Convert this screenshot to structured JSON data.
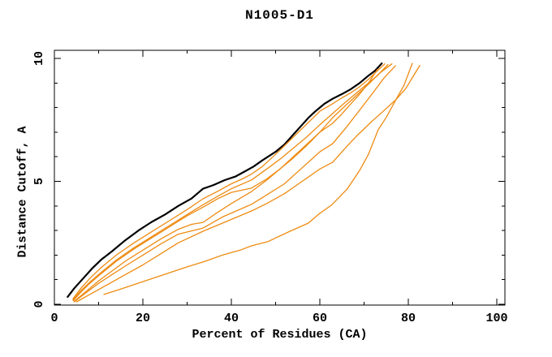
{
  "figure": {
    "background_color": "#ffffff",
    "axis_color": "#000000"
  },
  "chart_data": {
    "type": "line",
    "title": "N1005-D1",
    "xlabel": "Percent of Residues (CA)",
    "ylabel": "Distance Cutoff, A",
    "xlim": [
      0,
      102
    ],
    "ylim": [
      0,
      10.35
    ],
    "grid": false,
    "legend": "none",
    "frame": "full box, mirrored inward ticks",
    "x_axis": {
      "major_ticks": [
        0,
        20,
        40,
        60,
        80,
        100
      ],
      "minor_ticks": [
        10,
        30,
        50,
        70,
        90
      ],
      "tick_labels": [
        "0",
        "20",
        "40",
        "60",
        "80",
        "100"
      ]
    },
    "y_axis": {
      "major_ticks": [
        0,
        5,
        10
      ],
      "minor_ticks": [
        1,
        2,
        3,
        4,
        6,
        7,
        8,
        9
      ],
      "tick_labels": [
        "0",
        "5",
        "10"
      ],
      "tick_label_rotation_deg": -90
    },
    "series": [
      {
        "name": "black-curve",
        "color": "#000000",
        "stroke_width": 2.2,
        "points": [
          [
            3,
            0.3
          ],
          [
            4.5,
            0.65
          ],
          [
            6.5,
            1.05
          ],
          [
            8.5,
            1.45
          ],
          [
            10.6,
            1.82
          ],
          [
            13,
            2.15
          ],
          [
            16,
            2.6
          ],
          [
            19,
            3.0
          ],
          [
            22,
            3.35
          ],
          [
            25,
            3.65
          ],
          [
            28,
            4.0
          ],
          [
            31,
            4.3
          ],
          [
            33.6,
            4.7
          ],
          [
            36,
            4.85
          ],
          [
            38.5,
            5.05
          ],
          [
            41,
            5.2
          ],
          [
            43,
            5.4
          ],
          [
            45,
            5.6
          ],
          [
            47,
            5.85
          ],
          [
            50,
            6.2
          ],
          [
            52,
            6.5
          ],
          [
            54,
            6.9
          ],
          [
            56,
            7.3
          ],
          [
            57.5,
            7.6
          ],
          [
            59,
            7.85
          ],
          [
            61,
            8.15
          ],
          [
            62.9,
            8.36
          ],
          [
            65,
            8.55
          ],
          [
            67,
            8.75
          ],
          [
            69,
            9.0
          ],
          [
            71,
            9.3
          ],
          [
            72.5,
            9.5
          ],
          [
            74,
            9.8
          ]
        ]
      },
      {
        "name": "orange-curve-1",
        "color": "#ee8b12",
        "stroke_width": 1.3,
        "points": [
          [
            4.2,
            0.22
          ],
          [
            6,
            0.65
          ],
          [
            8,
            1.05
          ],
          [
            10.6,
            1.5
          ],
          [
            14,
            2.0
          ],
          [
            18,
            2.5
          ],
          [
            22,
            2.95
          ],
          [
            26,
            3.4
          ],
          [
            30,
            3.85
          ],
          [
            33.6,
            4.29
          ],
          [
            37,
            4.6
          ],
          [
            40,
            4.9
          ],
          [
            42.5,
            5.1
          ],
          [
            44.6,
            5.3
          ],
          [
            47,
            5.6
          ],
          [
            50,
            6.1
          ],
          [
            52,
            6.45
          ],
          [
            54,
            6.8
          ],
          [
            56,
            7.15
          ],
          [
            58,
            7.5
          ],
          [
            60,
            7.85
          ],
          [
            62.9,
            8.16
          ],
          [
            65,
            8.4
          ],
          [
            67,
            8.6
          ],
          [
            69,
            8.85
          ],
          [
            71,
            9.15
          ],
          [
            73,
            9.5
          ],
          [
            74.7,
            9.78
          ]
        ]
      },
      {
        "name": "orange-curve-2",
        "color": "#ee8b12",
        "stroke_width": 1.3,
        "points": [
          [
            4.2,
            0.18
          ],
          [
            6,
            0.55
          ],
          [
            8,
            0.9
          ],
          [
            10.6,
            1.3
          ],
          [
            14,
            1.8
          ],
          [
            18,
            2.3
          ],
          [
            22,
            2.75
          ],
          [
            26,
            3.2
          ],
          [
            30,
            3.65
          ],
          [
            33.6,
            4.05
          ],
          [
            37,
            4.4
          ],
          [
            40,
            4.7
          ],
          [
            44.6,
            5.06
          ],
          [
            48,
            5.5
          ],
          [
            51,
            5.9
          ],
          [
            54,
            6.35
          ],
          [
            57,
            6.8
          ],
          [
            60,
            7.3
          ],
          [
            62.9,
            7.76
          ],
          [
            65,
            8.1
          ],
          [
            68,
            8.55
          ],
          [
            71,
            9.0
          ],
          [
            73,
            9.3
          ],
          [
            75.4,
            9.75
          ]
        ]
      },
      {
        "name": "orange-curve-3",
        "color": "#ee8b12",
        "stroke_width": 1.3,
        "points": [
          [
            4.3,
            0.15
          ],
          [
            6,
            0.5
          ],
          [
            8,
            0.85
          ],
          [
            10.6,
            1.25
          ],
          [
            14,
            1.75
          ],
          [
            18,
            2.25
          ],
          [
            22,
            2.7
          ],
          [
            26,
            3.15
          ],
          [
            30,
            3.6
          ],
          [
            33.6,
            3.95
          ],
          [
            37,
            4.3
          ],
          [
            40,
            4.55
          ],
          [
            44.6,
            4.73
          ],
          [
            48,
            5.1
          ],
          [
            51,
            5.5
          ],
          [
            54,
            5.95
          ],
          [
            57,
            6.45
          ],
          [
            60,
            7.0
          ],
          [
            62.9,
            7.59
          ],
          [
            65,
            7.95
          ],
          [
            68,
            8.45
          ],
          [
            71,
            8.95
          ],
          [
            73.5,
            9.4
          ],
          [
            76.3,
            9.78
          ]
        ]
      },
      {
        "name": "orange-curve-4",
        "color": "#ee8b12",
        "stroke_width": 1.3,
        "points": [
          [
            4.5,
            0.12
          ],
          [
            7,
            0.5
          ],
          [
            10,
            0.95
          ],
          [
            13,
            1.35
          ],
          [
            16,
            1.75
          ],
          [
            20,
            2.2
          ],
          [
            24,
            2.65
          ],
          [
            28,
            3.05
          ],
          [
            31,
            3.25
          ],
          [
            33.6,
            3.33
          ],
          [
            37,
            3.75
          ],
          [
            40,
            4.1
          ],
          [
            44.6,
            4.59
          ],
          [
            48,
            5.05
          ],
          [
            51,
            5.5
          ],
          [
            54,
            6.0
          ],
          [
            57,
            6.5
          ],
          [
            60,
            7.0
          ],
          [
            62.9,
            7.36
          ],
          [
            65,
            7.75
          ],
          [
            67,
            8.15
          ],
          [
            69,
            8.55
          ],
          [
            71,
            9.0
          ],
          [
            73,
            9.55
          ]
        ]
      },
      {
        "name": "orange-curve-5",
        "color": "#ee8b12",
        "stroke_width": 1.3,
        "points": [
          [
            4.5,
            0.1
          ],
          [
            7,
            0.45
          ],
          [
            10,
            0.85
          ],
          [
            13,
            1.2
          ],
          [
            16,
            1.55
          ],
          [
            20,
            2.0
          ],
          [
            24,
            2.45
          ],
          [
            28,
            2.85
          ],
          [
            33.6,
            3.1
          ],
          [
            38,
            3.55
          ],
          [
            44.6,
            4.07
          ],
          [
            48,
            4.45
          ],
          [
            52,
            4.9
          ],
          [
            56,
            5.55
          ],
          [
            60,
            6.2
          ],
          [
            62.9,
            6.53
          ],
          [
            66,
            7.2
          ],
          [
            69,
            7.9
          ],
          [
            72,
            8.6
          ],
          [
            74.5,
            9.2
          ],
          [
            77.1,
            9.7
          ]
        ]
      },
      {
        "name": "orange-curve-6",
        "color": "#ee8b12",
        "stroke_width": 1.3,
        "points": [
          [
            5,
            0.1
          ],
          [
            8,
            0.4
          ],
          [
            12,
            0.8
          ],
          [
            16,
            1.2
          ],
          [
            20,
            1.6
          ],
          [
            24,
            2.05
          ],
          [
            28,
            2.5
          ],
          [
            33.6,
            2.97
          ],
          [
            38,
            3.3
          ],
          [
            44.6,
            3.8
          ],
          [
            48,
            4.1
          ],
          [
            52,
            4.5
          ],
          [
            56,
            5.0
          ],
          [
            60,
            5.5
          ],
          [
            62.9,
            5.78
          ],
          [
            66,
            6.4
          ],
          [
            68.4,
            6.86
          ],
          [
            71.7,
            7.43
          ],
          [
            74,
            7.8
          ],
          [
            77.2,
            8.32
          ],
          [
            79.5,
            8.8
          ],
          [
            82.6,
            9.72
          ]
        ]
      },
      {
        "name": "orange-curve-7",
        "color": "#ee8b12",
        "stroke_width": 1.3,
        "points": [
          [
            11.2,
            0.4
          ],
          [
            15,
            0.62
          ],
          [
            20,
            0.92
          ],
          [
            25,
            1.22
          ],
          [
            30,
            1.52
          ],
          [
            33.6,
            1.72
          ],
          [
            38,
            2.0
          ],
          [
            42,
            2.2
          ],
          [
            44.6,
            2.38
          ],
          [
            48.3,
            2.55
          ],
          [
            53,
            2.95
          ],
          [
            57.4,
            3.3
          ],
          [
            60,
            3.7
          ],
          [
            62.6,
            4.03
          ],
          [
            66.2,
            4.69
          ],
          [
            69,
            5.45
          ],
          [
            71,
            6.1
          ],
          [
            73.2,
            7.1
          ],
          [
            75,
            7.6
          ],
          [
            77.2,
            8.32
          ],
          [
            79,
            8.9
          ],
          [
            80.9,
            9.8
          ]
        ]
      }
    ]
  }
}
